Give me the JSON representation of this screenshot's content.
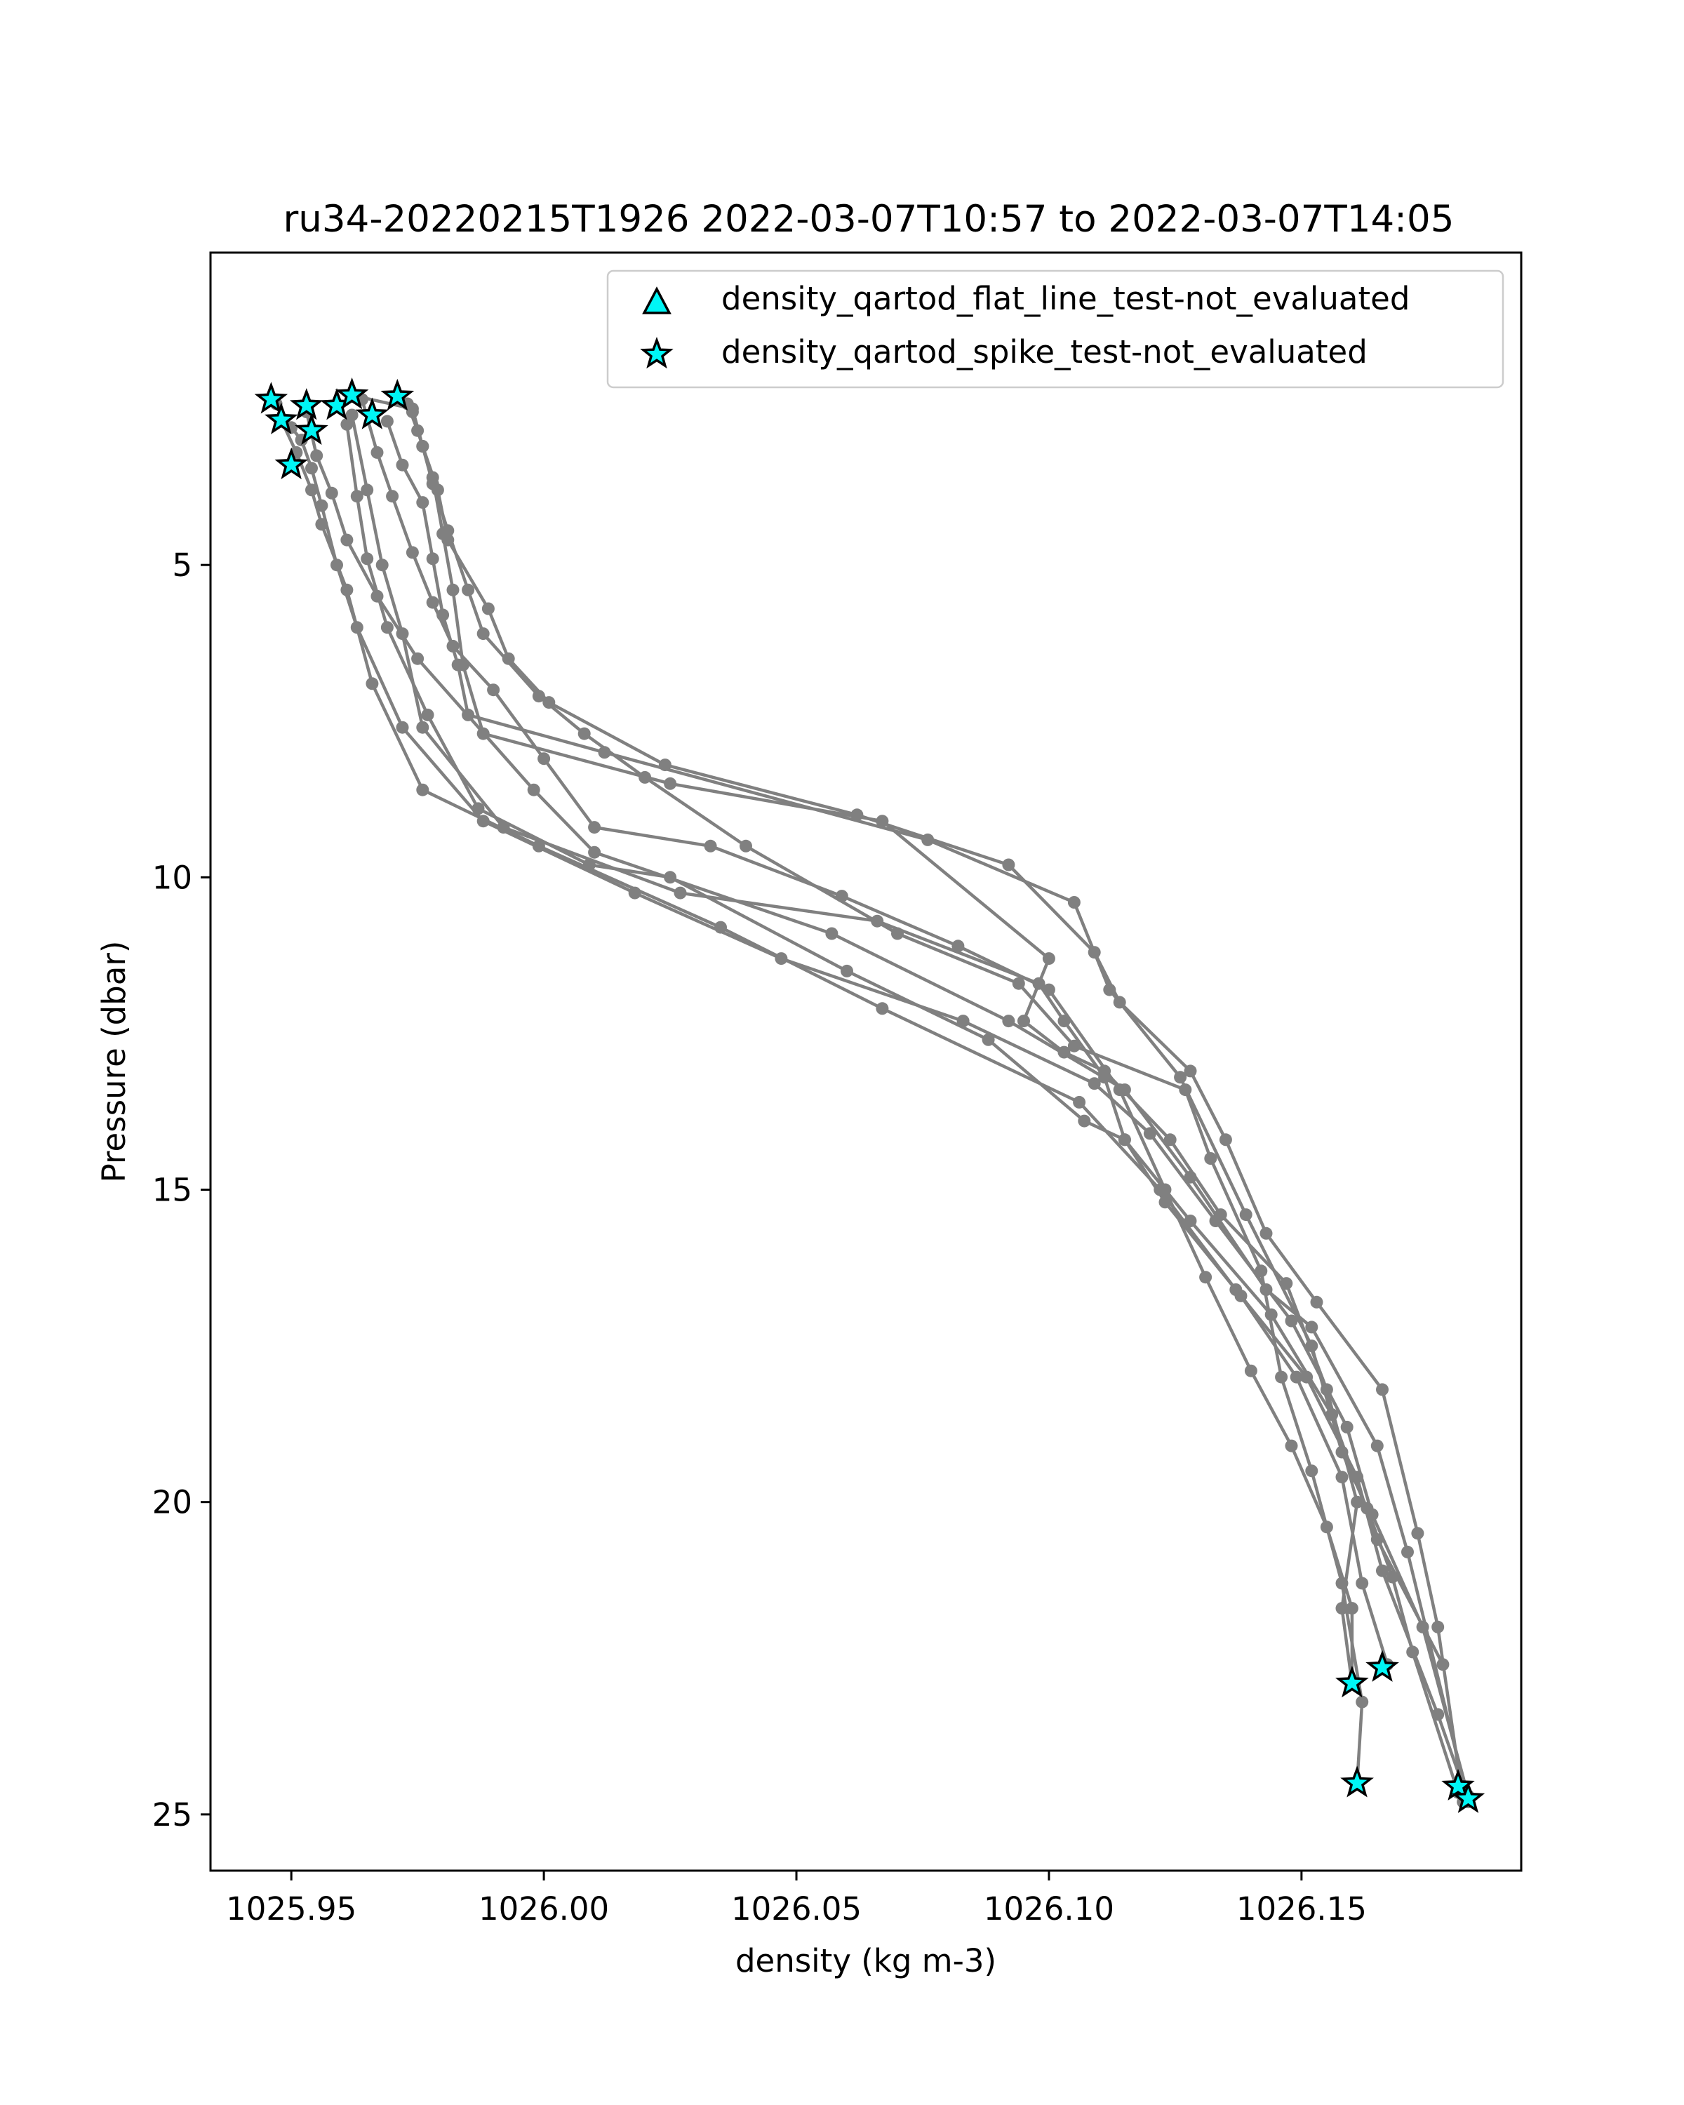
{
  "chart_data": {
    "type": "line",
    "title": "ru34-20220215T1926 2022-03-07T10:57 to 2022-03-07T14:05",
    "xlabel": "density (kg m-3)",
    "ylabel": "Pressure (dbar)",
    "xlim": [
      1025.934,
      1026.1935
    ],
    "ylim": [
      25.9,
      0.0
    ],
    "y_inverted": true,
    "grid": false,
    "legend_position": "top-right",
    "x_ticks": [
      1025.95,
      1026.0,
      1026.05,
      1026.1,
      1026.15
    ],
    "x_tick_labels": [
      "1025.95",
      "1026.00",
      "1026.05",
      "1026.10",
      "1026.15"
    ],
    "y_ticks": [
      5,
      10,
      15,
      20,
      25
    ],
    "y_tick_labels": [
      "5",
      "10",
      "15",
      "20",
      "25"
    ],
    "profile_color": "#808080",
    "marker_face_color": "#00f5f5",
    "marker_edge_color": "#000000",
    "legend": [
      {
        "label": "density_qartod_flat_line_test-not_evaluated",
        "marker": "triangle"
      },
      {
        "label": "density_qartod_spike_test-not_evaluated",
        "marker": "star"
      }
    ],
    "series": [
      {
        "points": [
          [
            1025.947,
            2.42
          ],
          [
            1025.95,
            2.8
          ],
          [
            1025.952,
            3.0
          ],
          [
            1025.954,
            3.45
          ],
          [
            1025.956,
            4.05
          ],
          [
            1025.959,
            5.0
          ],
          [
            1025.963,
            6.0
          ],
          [
            1025.972,
            7.6
          ],
          [
            1025.988,
            9.1
          ],
          [
            1026.018,
            10.25
          ],
          [
            1026.047,
            11.3
          ],
          [
            1026.083,
            12.3
          ],
          [
            1026.109,
            13.3
          ],
          [
            1026.12,
            14.1
          ],
          [
            1026.133,
            15.5
          ],
          [
            1026.148,
            17.1
          ],
          [
            1026.159,
            18.8
          ],
          [
            1026.164,
            20.2
          ],
          [
            1026.174,
            22.0
          ],
          [
            1026.183,
            24.7
          ]
        ]
      },
      {
        "points": [
          [
            1025.948,
            2.68
          ],
          [
            1025.951,
            3.2
          ],
          [
            1025.954,
            3.8
          ],
          [
            1025.956,
            4.35
          ],
          [
            1025.961,
            5.4
          ],
          [
            1025.966,
            6.9
          ],
          [
            1025.976,
            8.6
          ],
          [
            1025.999,
            9.5
          ],
          [
            1026.035,
            10.8
          ],
          [
            1026.067,
            12.1
          ],
          [
            1026.106,
            13.6
          ],
          [
            1026.122,
            15.0
          ],
          [
            1026.137,
            16.6
          ],
          [
            1026.151,
            18.0
          ],
          [
            1026.161,
            19.6
          ],
          [
            1026.166,
            21.1
          ],
          [
            1026.177,
            23.4
          ],
          [
            1026.182,
            24.55
          ]
        ]
      },
      {
        "points": [
          [
            1025.953,
            2.55
          ],
          [
            1025.955,
            3.25
          ],
          [
            1025.958,
            3.85
          ],
          [
            1025.961,
            4.6
          ],
          [
            1025.967,
            5.5
          ],
          [
            1025.975,
            6.5
          ],
          [
            1025.998,
            8.6
          ],
          [
            1026.01,
            9.6
          ],
          [
            1026.057,
            10.9
          ],
          [
            1026.092,
            12.3
          ],
          [
            1026.115,
            13.4
          ],
          [
            1026.128,
            14.8
          ],
          [
            1026.143,
            16.6
          ],
          [
            1026.152,
            17.2
          ],
          [
            1026.165,
            19.1
          ],
          [
            1026.171,
            20.8
          ],
          [
            1026.183,
            24.8
          ]
        ]
      },
      {
        "points": [
          [
            1025.962,
            2.6
          ],
          [
            1025.965,
            3.8
          ],
          [
            1025.968,
            5.0
          ],
          [
            1025.972,
            6.1
          ],
          [
            1025.976,
            7.6
          ],
          [
            1025.992,
            9.2
          ],
          [
            1026.027,
            10.25
          ],
          [
            1026.066,
            10.7
          ],
          [
            1026.098,
            11.7
          ],
          [
            1026.103,
            12.3
          ],
          [
            1026.111,
            13.2
          ],
          [
            1026.115,
            14.2
          ],
          [
            1026.128,
            15.5
          ],
          [
            1026.144,
            17.0
          ],
          [
            1026.156,
            18.6
          ],
          [
            1026.165,
            20.6
          ],
          [
            1026.178,
            22.6
          ]
        ]
      },
      {
        "points": [
          [
            1025.961,
            2.75
          ],
          [
            1025.963,
            3.9
          ],
          [
            1025.965,
            4.9
          ],
          [
            1025.969,
            6.0
          ],
          [
            1025.977,
            7.4
          ],
          [
            1025.987,
            8.9
          ],
          [
            1026.009,
            9.8
          ],
          [
            1026.025,
            10.0
          ],
          [
            1026.06,
            11.5
          ],
          [
            1026.088,
            12.6
          ],
          [
            1026.107,
            13.9
          ],
          [
            1026.115,
            14.2
          ],
          [
            1026.123,
            15.2
          ],
          [
            1026.138,
            16.7
          ],
          [
            1026.149,
            18.0
          ],
          [
            1026.158,
            19.6
          ],
          [
            1026.162,
            21.3
          ],
          [
            1026.167,
            22.6
          ]
        ]
      },
      {
        "points": [
          [
            1025.964,
            2.35
          ],
          [
            1025.967,
            3.2
          ],
          [
            1025.97,
            3.9
          ],
          [
            1025.974,
            4.8
          ],
          [
            1025.978,
            5.6
          ],
          [
            1025.982,
            6.3
          ],
          [
            1025.99,
            7.0
          ],
          [
            1026.0,
            8.1
          ],
          [
            1026.01,
            9.2
          ],
          [
            1026.033,
            9.5
          ],
          [
            1026.059,
            10.3
          ],
          [
            1026.082,
            11.1
          ],
          [
            1026.1,
            11.8
          ],
          [
            1026.114,
            13.4
          ],
          [
            1026.123,
            15.0
          ],
          [
            1026.131,
            16.4
          ],
          [
            1026.14,
            17.9
          ],
          [
            1026.148,
            19.1
          ],
          [
            1026.155,
            20.4
          ],
          [
            1026.16,
            21.7
          ],
          [
            1026.16,
            22.9
          ]
        ]
      },
      {
        "points": [
          [
            1025.969,
            2.7
          ],
          [
            1025.972,
            3.4
          ],
          [
            1025.976,
            4.0
          ],
          [
            1025.978,
            4.9
          ],
          [
            1025.98,
            5.8
          ],
          [
            1025.983,
            6.6
          ],
          [
            1025.985,
            7.4
          ],
          [
            1026.012,
            8.0
          ],
          [
            1026.076,
            9.4
          ],
          [
            1026.105,
            10.4
          ],
          [
            1026.112,
            11.8
          ],
          [
            1026.126,
            13.2
          ],
          [
            1026.139,
            15.4
          ],
          [
            1026.152,
            17.5
          ],
          [
            1026.158,
            19.2
          ],
          [
            1026.163,
            20.1
          ],
          [
            1026.168,
            21.2
          ],
          [
            1026.172,
            22.4
          ],
          [
            1026.181,
            24.65
          ]
        ]
      },
      {
        "points": [
          [
            1025.973,
            2.42
          ],
          [
            1025.975,
            2.85
          ],
          [
            1025.978,
            3.6
          ],
          [
            1025.98,
            4.5
          ],
          [
            1025.982,
            5.4
          ],
          [
            1025.984,
            6.6
          ],
          [
            1025.988,
            7.7
          ],
          [
            1026.025,
            8.5
          ],
          [
            1026.067,
            9.1
          ],
          [
            1026.1,
            11.3
          ],
          [
            1026.095,
            12.3
          ],
          [
            1026.103,
            12.8
          ],
          [
            1026.111,
            13.1
          ],
          [
            1026.124,
            14.2
          ],
          [
            1026.134,
            15.4
          ],
          [
            1026.147,
            16.5
          ],
          [
            1026.155,
            18.2
          ],
          [
            1026.161,
            20.0
          ],
          [
            1026.158,
            21.7
          ],
          [
            1026.16,
            22.9
          ]
        ]
      },
      {
        "points": [
          [
            1025.974,
            2.55
          ],
          [
            1025.976,
            3.1
          ],
          [
            1025.978,
            3.7
          ],
          [
            1025.981,
            4.45
          ],
          [
            1025.985,
            5.4
          ],
          [
            1025.988,
            6.1
          ],
          [
            1025.999,
            7.1
          ],
          [
            1026.008,
            7.7
          ],
          [
            1026.02,
            8.4
          ],
          [
            1026.04,
            9.5
          ],
          [
            1026.07,
            10.9
          ],
          [
            1026.094,
            11.7
          ],
          [
            1026.105,
            12.7
          ],
          [
            1026.127,
            13.4
          ],
          [
            1026.132,
            14.5
          ],
          [
            1026.142,
            16.3
          ],
          [
            1026.146,
            18.0
          ],
          [
            1026.152,
            19.5
          ],
          [
            1026.158,
            21.3
          ],
          [
            1026.162,
            23.2
          ],
          [
            1026.161,
            24.5
          ]
        ]
      },
      {
        "points": [
          [
            1025.963,
            2.3
          ],
          [
            1025.974,
            2.5
          ],
          [
            1025.976,
            3.1
          ],
          [
            1025.979,
            3.8
          ],
          [
            1025.981,
            4.6
          ],
          [
            1025.989,
            5.7
          ],
          [
            1025.993,
            6.5
          ],
          [
            1026.001,
            7.2
          ],
          [
            1026.024,
            8.2
          ],
          [
            1026.062,
            9.0
          ],
          [
            1026.092,
            9.8
          ],
          [
            1026.109,
            11.2
          ],
          [
            1026.114,
            12.0
          ],
          [
            1026.128,
            13.1
          ],
          [
            1026.135,
            14.2
          ],
          [
            1026.143,
            15.7
          ],
          [
            1026.153,
            16.8
          ],
          [
            1026.166,
            18.2
          ],
          [
            1026.173,
            20.5
          ],
          [
            1026.177,
            22.0
          ],
          [
            1026.182,
            24.8
          ]
        ]
      }
    ],
    "flagged_points": [
      [
        1025.946,
        2.35
      ],
      [
        1025.948,
        2.68
      ],
      [
        1025.953,
        2.45
      ],
      [
        1025.954,
        2.85
      ],
      [
        1025.95,
        3.4
      ],
      [
        1025.959,
        2.45
      ],
      [
        1025.962,
        2.28
      ],
      [
        1025.966,
        2.6
      ],
      [
        1025.971,
        2.3
      ],
      [
        1026.16,
        22.9
      ],
      [
        1026.166,
        22.65
      ],
      [
        1026.161,
        24.5
      ],
      [
        1026.181,
        24.55
      ],
      [
        1026.183,
        24.75
      ]
    ]
  }
}
